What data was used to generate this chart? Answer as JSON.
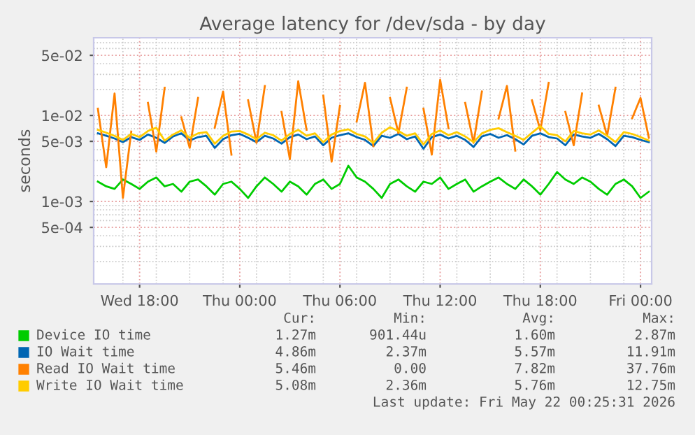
{
  "chart_data": {
    "type": "line",
    "title": "Average latency for /dev/sda - by day",
    "ylabel": "seconds",
    "log": "y",
    "grid": true,
    "legend": "bottom",
    "marker": "none",
    "line_style": "solid",
    "xlim": [
      "2026-05-20T15:15",
      "2026-05-22T00:40"
    ],
    "xticks": [
      {
        "value": "2026-05-20T18:00",
        "label": "Wed 18:00"
      },
      {
        "value": "2026-05-21T00:00",
        "label": "Thu 00:00"
      },
      {
        "value": "2026-05-21T06:00",
        "label": "Thu 06:00"
      },
      {
        "value": "2026-05-21T12:00",
        "label": "Thu 12:00"
      },
      {
        "value": "2026-05-21T18:00",
        "label": "Thu 18:00"
      },
      {
        "value": "2026-05-22T00:00",
        "label": "Fri 00:00"
      }
    ],
    "ylim": [
      0.00011,
      0.08
    ],
    "yticks": [
      {
        "value": 0.0005,
        "label": "5e-04"
      },
      {
        "value": 0.001,
        "label": "1e-03"
      },
      {
        "value": 0.005,
        "label": "5e-03"
      },
      {
        "value": 0.01,
        "label": "1e-02"
      },
      {
        "value": 0.05,
        "label": "5e-02"
      }
    ],
    "x": [
      "2026-05-20T15:30",
      "2026-05-20T16:00",
      "2026-05-20T16:30",
      "2026-05-20T17:00",
      "2026-05-20T17:30",
      "2026-05-20T18:00",
      "2026-05-20T18:30",
      "2026-05-20T19:00",
      "2026-05-20T19:30",
      "2026-05-20T20:00",
      "2026-05-20T20:30",
      "2026-05-20T21:00",
      "2026-05-20T21:30",
      "2026-05-20T22:00",
      "2026-05-20T22:30",
      "2026-05-20T23:00",
      "2026-05-20T23:30",
      "2026-05-21T00:00",
      "2026-05-21T00:30",
      "2026-05-21T01:00",
      "2026-05-21T01:30",
      "2026-05-21T02:00",
      "2026-05-21T02:30",
      "2026-05-21T03:00",
      "2026-05-21T03:30",
      "2026-05-21T04:00",
      "2026-05-21T04:30",
      "2026-05-21T05:00",
      "2026-05-21T05:30",
      "2026-05-21T06:00",
      "2026-05-21T06:30",
      "2026-05-21T07:00",
      "2026-05-21T07:30",
      "2026-05-21T08:00",
      "2026-05-21T08:30",
      "2026-05-21T09:00",
      "2026-05-21T09:30",
      "2026-05-21T10:00",
      "2026-05-21T10:30",
      "2026-05-21T11:00",
      "2026-05-21T11:30",
      "2026-05-21T12:00",
      "2026-05-21T12:30",
      "2026-05-21T13:00",
      "2026-05-21T13:30",
      "2026-05-21T14:00",
      "2026-05-21T14:30",
      "2026-05-21T15:00",
      "2026-05-21T15:30",
      "2026-05-21T16:00",
      "2026-05-21T16:30",
      "2026-05-21T17:00",
      "2026-05-21T17:30",
      "2026-05-21T18:00",
      "2026-05-21T18:30",
      "2026-05-21T19:00",
      "2026-05-21T19:30",
      "2026-05-21T20:00",
      "2026-05-21T20:30",
      "2026-05-21T21:00",
      "2026-05-21T21:30",
      "2026-05-21T22:00",
      "2026-05-21T22:30",
      "2026-05-21T23:00",
      "2026-05-21T23:30",
      "2026-05-22T00:00",
      "2026-05-22T00:30"
    ],
    "series": [
      {
        "name": "Device IO time",
        "color": "#00cc00",
        "values": [
          0.0017,
          0.0015,
          0.0014,
          0.0018,
          0.0016,
          0.0014,
          0.0017,
          0.0019,
          0.0015,
          0.0016,
          0.0013,
          0.0017,
          0.0018,
          0.0015,
          0.0012,
          0.0016,
          0.0017,
          0.0014,
          0.0011,
          0.0015,
          0.0019,
          0.0016,
          0.0013,
          0.0017,
          0.0015,
          0.0012,
          0.0016,
          0.0018,
          0.0014,
          0.0016,
          0.0026,
          0.0019,
          0.0017,
          0.0014,
          0.0011,
          0.0016,
          0.0018,
          0.0015,
          0.0013,
          0.0017,
          0.0016,
          0.0019,
          0.0014,
          0.0016,
          0.0018,
          0.0013,
          0.0015,
          0.0017,
          0.0019,
          0.0016,
          0.0014,
          0.0018,
          0.0015,
          0.0012,
          0.0016,
          0.0022,
          0.0018,
          0.0016,
          0.0019,
          0.0017,
          0.0014,
          0.0012,
          0.0016,
          0.0018,
          0.0015,
          0.0011,
          0.0013
        ]
      },
      {
        "name": "IO Wait time",
        "color": "#0066b3",
        "values": [
          0.0062,
          0.0058,
          0.0054,
          0.0049,
          0.0056,
          0.0052,
          0.006,
          0.0055,
          0.0048,
          0.0057,
          0.0062,
          0.0051,
          0.0056,
          0.0058,
          0.0042,
          0.0053,
          0.0059,
          0.0061,
          0.0055,
          0.0049,
          0.0058,
          0.0054,
          0.0047,
          0.0056,
          0.006,
          0.0053,
          0.0057,
          0.0045,
          0.0055,
          0.0059,
          0.0062,
          0.0056,
          0.0052,
          0.0044,
          0.0058,
          0.0055,
          0.0061,
          0.0053,
          0.0057,
          0.0041,
          0.0056,
          0.006,
          0.0054,
          0.0058,
          0.0052,
          0.0043,
          0.0057,
          0.0061,
          0.0055,
          0.0059,
          0.0053,
          0.0046,
          0.0058,
          0.0062,
          0.0056,
          0.0054,
          0.0045,
          0.006,
          0.0057,
          0.0055,
          0.0061,
          0.0053,
          0.0044,
          0.0058,
          0.0056,
          0.0052,
          0.0049
        ]
      },
      {
        "name": "Read IO Wait time",
        "color": "#ff8000",
        "values": [
          0.012,
          0.0025,
          0.018,
          0.0011,
          0.0065,
          null,
          0.014,
          0.0038,
          0.021,
          null,
          0.0095,
          0.0042,
          0.016,
          null,
          0.0072,
          0.019,
          0.0035,
          null,
          0.015,
          0.0048,
          0.022,
          null,
          0.011,
          0.0031,
          0.025,
          0.0068,
          null,
          0.017,
          0.0029,
          0.013,
          null,
          0.0085,
          0.024,
          0.0044,
          null,
          0.016,
          0.0062,
          0.021,
          null,
          0.012,
          0.0035,
          0.026,
          0.0071,
          null,
          0.014,
          0.0048,
          0.019,
          null,
          0.0092,
          0.022,
          0.0039,
          null,
          0.015,
          0.0067,
          0.024,
          null,
          0.011,
          0.0045,
          0.018,
          null,
          0.013,
          0.0058,
          0.021,
          null,
          0.0093,
          0.016,
          0.0055
        ]
      },
      {
        "name": "Write IO Wait time",
        "color": "#ffcc00",
        "values": [
          0.0068,
          0.0063,
          0.0058,
          0.0052,
          0.0061,
          0.0056,
          0.0066,
          0.0072,
          0.0051,
          0.006,
          0.0067,
          0.0055,
          0.0062,
          0.0064,
          0.0047,
          0.0058,
          0.0065,
          0.0066,
          0.006,
          0.0053,
          0.0063,
          0.0059,
          0.0051,
          0.0061,
          0.0068,
          0.0058,
          0.0062,
          0.0049,
          0.006,
          0.0066,
          0.0069,
          0.0061,
          0.0057,
          0.0048,
          0.0063,
          0.0073,
          0.0066,
          0.0058,
          0.0062,
          0.0046,
          0.0061,
          0.0067,
          0.0059,
          0.0064,
          0.0057,
          0.0049,
          0.0062,
          0.0068,
          0.0071,
          0.0064,
          0.0058,
          0.0052,
          0.0063,
          0.0075,
          0.0061,
          0.0059,
          0.005,
          0.0066,
          0.0062,
          0.006,
          0.0067,
          0.0058,
          0.0049,
          0.0064,
          0.0061,
          0.0056,
          0.0051
        ]
      }
    ],
    "annotations": [
      "Cur:",
      "Min:",
      "Avg:",
      "Max:",
      "1.27m",
      "901.44u",
      "1.60m",
      "2.87m",
      "4.86m",
      "2.37m",
      "5.57m",
      "11.91m",
      "5.46m",
      "0.00",
      "7.82m",
      "37.76m",
      "5.08m",
      "2.36m",
      "5.76m",
      "12.75m",
      "Last update: Fri May 22 00:25:31 2026"
    ]
  }
}
